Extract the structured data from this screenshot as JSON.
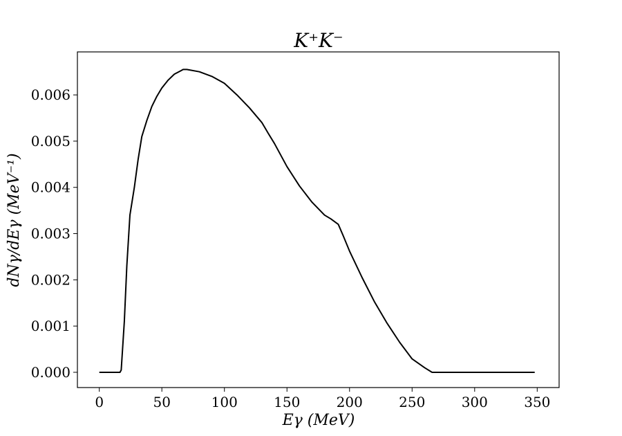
{
  "chart_data": {
    "type": "line",
    "title": "K⁺K⁻",
    "xlabel": "Eγ (MeV)",
    "ylabel": "dNγ/dEγ (MeV⁻¹)",
    "xlim": [
      -17.5,
      367.5
    ],
    "ylim": [
      -0.00033,
      0.00693
    ],
    "xticks": [
      0,
      50,
      100,
      150,
      200,
      250,
      300,
      350
    ],
    "xtick_labels": [
      "0",
      "50",
      "100",
      "150",
      "200",
      "250",
      "300",
      "350"
    ],
    "yticks": [
      0.0,
      0.001,
      0.002,
      0.003,
      0.004,
      0.005,
      0.006
    ],
    "ytick_labels": [
      "0.000",
      "0.001",
      "0.002",
      "0.003",
      "0.004",
      "0.005",
      "0.006"
    ],
    "grid": false,
    "series": [
      {
        "color": "#000000",
        "x": [
          0,
          10,
          16.5,
          17.5,
          20,
          22,
          24.5,
          28,
          31,
          34,
          38,
          42,
          46,
          50,
          55,
          60,
          65,
          67,
          70,
          80,
          90,
          100,
          110,
          120,
          130,
          135,
          140,
          150,
          160,
          170,
          180,
          185,
          191,
          195,
          200,
          210,
          220,
          230,
          240,
          250,
          260,
          266,
          270,
          300,
          330,
          348
        ],
        "y": [
          0.0,
          0.0,
          0.0,
          5e-05,
          0.0011,
          0.0023,
          0.0034,
          0.004,
          0.0046,
          0.0051,
          0.00545,
          0.00575,
          0.00597,
          0.00615,
          0.00632,
          0.00645,
          0.00652,
          0.00655,
          0.00655,
          0.0065,
          0.0064,
          0.00625,
          0.006,
          0.00572,
          0.0054,
          0.00517,
          0.00495,
          0.00445,
          0.00403,
          0.00368,
          0.0034,
          0.00332,
          0.0032,
          0.00295,
          0.00262,
          0.00205,
          0.00152,
          0.00106,
          0.00065,
          0.00029,
          0.0001,
          0.0,
          0.0,
          0.0,
          0.0,
          0.0
        ]
      }
    ]
  }
}
